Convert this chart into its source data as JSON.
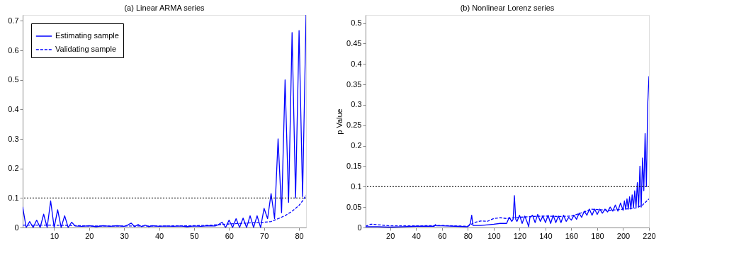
{
  "chart_data": [
    {
      "type": "line",
      "title": "(a) Linear ARMA series",
      "xlim": [
        1,
        82
      ],
      "xticks": [
        10,
        20,
        30,
        40,
        50,
        60,
        70,
        80
      ],
      "ylim": [
        0,
        0.72
      ],
      "yticks": [
        0,
        0.1,
        0.2,
        0.3,
        0.4,
        0.5,
        0.6,
        0.7
      ],
      "grid": false,
      "legend": "top left",
      "series": [
        {
          "name": "Estimating sample",
          "color": "#0000ff",
          "line_style": "solid",
          "x": [
            1,
            2,
            3,
            4,
            5,
            6,
            7,
            8,
            9,
            10,
            11,
            12,
            13,
            14,
            15,
            16,
            18,
            20,
            22,
            24,
            26,
            28,
            30,
            31,
            32,
            33,
            34,
            35,
            36,
            37,
            38,
            40,
            42,
            44,
            46,
            48,
            50,
            52,
            54,
            56,
            57,
            58,
            59,
            60,
            61,
            62,
            63,
            64,
            65,
            66,
            67,
            68,
            69,
            70,
            71,
            72,
            73,
            74,
            75,
            76,
            77,
            78,
            79,
            80,
            81,
            82
          ],
          "values": [
            0.07,
            0,
            0.02,
            0,
            0.025,
            0,
            0.045,
            0,
            0.09,
            0,
            0.06,
            0,
            0.04,
            0,
            0.018,
            0.005,
            0.004,
            0.006,
            0.003,
            0.006,
            0.004,
            0.006,
            0.004,
            0.008,
            0.015,
            0.003,
            0.01,
            0.003,
            0.008,
            0.003,
            0.006,
            0.004,
            0.005,
            0.004,
            0.005,
            0.003,
            0.005,
            0.004,
            0.006,
            0.005,
            0.01,
            0.018,
            0,
            0.025,
            0,
            0.03,
            0,
            0.032,
            0,
            0.04,
            0,
            0.04,
            0,
            0.065,
            0.03,
            0.115,
            0.03,
            0.3,
            0.05,
            0.5,
            0.085,
            0.66,
            0.1,
            0.667,
            0.105,
            0.72
          ]
        },
        {
          "name": "Validating sample",
          "color": "#0000ff",
          "line_style": "dashed",
          "x": [
            1,
            5,
            10,
            15,
            20,
            30,
            40,
            50,
            55,
            60,
            65,
            70,
            72,
            74,
            76,
            78,
            80,
            81,
            82
          ],
          "values": [
            0.008,
            0.008,
            0.008,
            0.007,
            0.005,
            0.005,
            0.005,
            0.006,
            0.008,
            0.012,
            0.015,
            0.018,
            0.02,
            0.03,
            0.04,
            0.055,
            0.075,
            0.09,
            0.11
          ]
        }
      ],
      "ref_lines": [
        {
          "axis": "y",
          "value": 0.1,
          "color": "#000000",
          "line_style": "dotted"
        }
      ]
    },
    {
      "type": "line",
      "title": "(b) Nonlinear Lorenz series",
      "ylabel": "p Value",
      "xlim": [
        1,
        220
      ],
      "xticks": [
        20,
        40,
        60,
        80,
        100,
        120,
        140,
        160,
        180,
        200,
        220
      ],
      "ylim": [
        0,
        0.52
      ],
      "yticks": [
        0,
        0.05,
        0.1,
        0.15,
        0.2,
        0.25,
        0.3,
        0.35,
        0.4,
        0.45,
        0.5
      ],
      "grid": false,
      "legend": "top left",
      "series": [
        {
          "name": "Estimating sample",
          "color": "#0000ff",
          "line_style": "solid",
          "x": [
            1,
            10,
            20,
            30,
            40,
            50,
            54,
            55,
            56,
            60,
            70,
            80,
            82,
            83,
            84,
            90,
            100,
            105,
            110,
            112,
            114,
            115,
            116,
            117,
            118,
            120,
            122,
            124,
            126,
            127,
            128,
            130,
            132,
            134,
            136,
            138,
            140,
            142,
            144,
            146,
            148,
            150,
            152,
            154,
            156,
            158,
            160,
            162,
            164,
            166,
            168,
            170,
            172,
            174,
            176,
            178,
            180,
            182,
            184,
            186,
            188,
            190,
            192,
            194,
            196,
            198,
            200,
            201,
            202,
            203,
            204,
            205,
            206,
            207,
            208,
            209,
            210,
            211,
            212,
            213,
            214,
            215,
            216,
            217,
            218,
            219,
            220
          ],
          "values": [
            0.002,
            0.002,
            0.001,
            0.002,
            0.003,
            0.003,
            0.003,
            0.007,
            0.004,
            0.004,
            0.003,
            0.002,
            0.01,
            0.03,
            0.005,
            0.005,
            0.008,
            0.01,
            0.01,
            0.025,
            0.015,
            0.02,
            0.078,
            0.02,
            0.015,
            0.03,
            0.01,
            0.028,
            0.012,
            0.002,
            0.025,
            0.03,
            0.012,
            0.032,
            0.015,
            0.028,
            0.012,
            0.03,
            0.01,
            0.03,
            0.012,
            0.028,
            0.012,
            0.03,
            0.015,
            0.025,
            0.018,
            0.03,
            0.02,
            0.035,
            0.025,
            0.04,
            0.03,
            0.045,
            0.03,
            0.045,
            0.032,
            0.045,
            0.035,
            0.045,
            0.038,
            0.05,
            0.04,
            0.055,
            0.04,
            0.06,
            0.042,
            0.065,
            0.045,
            0.07,
            0.045,
            0.075,
            0.045,
            0.08,
            0.048,
            0.09,
            0.05,
            0.11,
            0.05,
            0.15,
            0.05,
            0.17,
            0.09,
            0.23,
            0.1,
            0.3,
            0.37
          ]
        },
        {
          "name": "Validating sample",
          "color": "#0000ff",
          "line_style": "dashed",
          "x": [
            1,
            5,
            10,
            20,
            40,
            60,
            80,
            85,
            90,
            95,
            100,
            105,
            110,
            120,
            130,
            140,
            150,
            160,
            170,
            175,
            180,
            190,
            200,
            205,
            210,
            215,
            220
          ],
          "values": [
            0.003,
            0.008,
            0.007,
            0.004,
            0.004,
            0.005,
            0.003,
            0.012,
            0.016,
            0.015,
            0.022,
            0.024,
            0.022,
            0.025,
            0.027,
            0.028,
            0.027,
            0.028,
            0.038,
            0.045,
            0.044,
            0.042,
            0.045,
            0.046,
            0.048,
            0.055,
            0.07
          ]
        }
      ],
      "ref_lines": [
        {
          "axis": "y",
          "value": 0.1,
          "color": "#000000",
          "line_style": "dotted"
        }
      ]
    }
  ]
}
